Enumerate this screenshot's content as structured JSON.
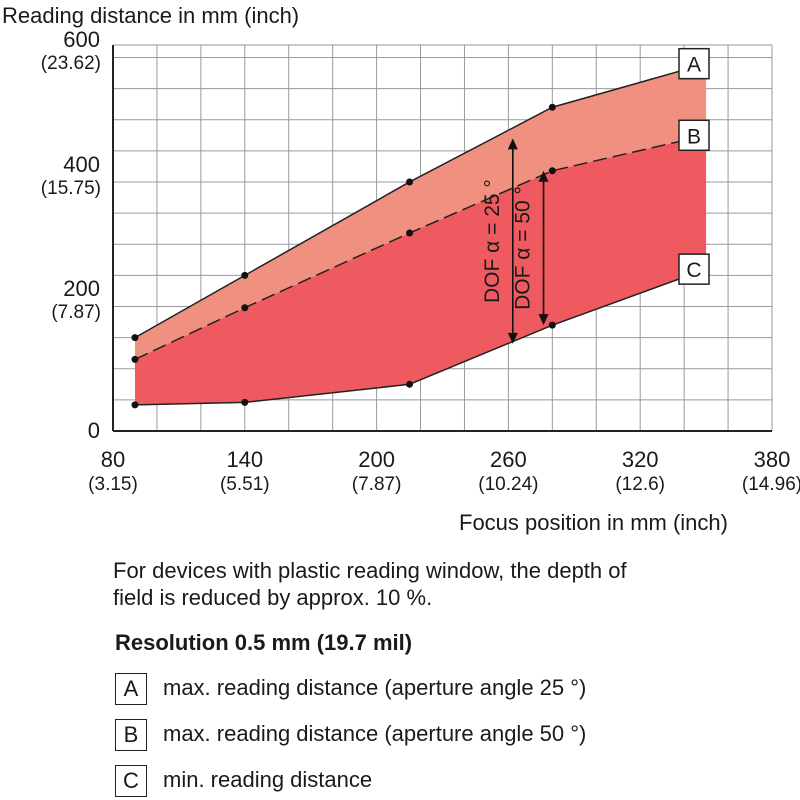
{
  "chart_data": {
    "type": "area",
    "title": "",
    "ylabel": "Reading distance in mm (inch)",
    "xlabel": "Focus position in mm (inch)",
    "xlim": [
      80,
      380
    ],
    "ylim": [
      0,
      620
    ],
    "grid": true,
    "x_ticks": [
      {
        "value": 80,
        "label": "80",
        "sub": "(3.15)"
      },
      {
        "value": 140,
        "label": "140",
        "sub": "(5.51)"
      },
      {
        "value": 200,
        "label": "200",
        "sub": "(7.87)"
      },
      {
        "value": 260,
        "label": "260",
        "sub": "(10.24)"
      },
      {
        "value": 320,
        "label": "320",
        "sub": "(12.6)"
      },
      {
        "value": 380,
        "label": "380",
        "sub": "(14.96)"
      }
    ],
    "y_ticks": [
      {
        "value": 0,
        "label": "0",
        "sub": ""
      },
      {
        "value": 200,
        "label": "200",
        "sub": "(7.87)"
      },
      {
        "value": 400,
        "label": "400",
        "sub": "(15.75)"
      },
      {
        "value": 600,
        "label": "600",
        "sub": "(23.62)"
      }
    ],
    "x": [
      90,
      140,
      215,
      280,
      350
    ],
    "series": [
      {
        "name": "A",
        "values": [
          150,
          250,
          400,
          520,
          590
        ],
        "color": "#f09080",
        "line": "solid"
      },
      {
        "name": "B",
        "values": [
          115,
          198,
          318,
          418,
          475
        ],
        "color": "#ef5a60",
        "line": "dashed"
      },
      {
        "name": "C",
        "values": [
          42,
          46,
          75,
          170,
          260
        ],
        "color": "#ef5a60",
        "line": "solid"
      }
    ],
    "annotations": [
      {
        "text": "DOF α = 25 °",
        "x": 262,
        "from": 140,
        "to": 470
      },
      {
        "text": "DOF α = 50 °",
        "x": 276,
        "from": 170,
        "to": 418
      }
    ]
  },
  "note": "For devices with plastic reading window, the depth of field is reduced by approx. 10 %.",
  "note_line1": "For devices with plastic reading window, the depth of",
  "note_line2": "field is reduced by approx. 10 %.",
  "resolution_title": "Resolution 0.5 mm (19.7 mil)",
  "legend": [
    {
      "key": "A",
      "text": "max. reading distance (aperture angle 25 °)"
    },
    {
      "key": "B",
      "text": "max. reading distance (aperture angle 50 °)"
    },
    {
      "key": "C",
      "text": "min. reading distance"
    }
  ]
}
